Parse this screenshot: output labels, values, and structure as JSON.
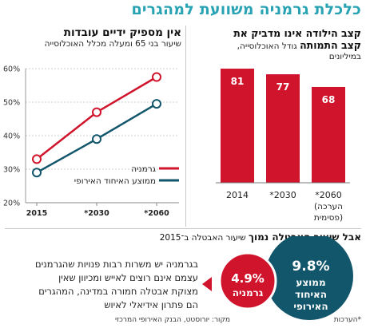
{
  "headline": "כלכלת גרמניה משוועת למהגרים",
  "bar_section": {
    "title_line1": "קצב הילודה אינו מדביק את",
    "title_line2_bold": "קצב התמותה",
    "title_line2_rest": " גודל האוכלוסייה,",
    "title_line3": "במיליונים"
  },
  "line_section": {
    "title": "אין מספיק ידיים עובדות",
    "subtitle": "שיעור בני 65 ומעלה מכלל האוכלוסייה"
  },
  "chart_data": [
    {
      "type": "bar",
      "categories": [
        "2014",
        "*2030",
        "*2060"
      ],
      "category_notes": [
        "",
        "",
        "(הערכה פסימית)"
      ],
      "values": [
        81,
        77,
        68
      ],
      "data_labels": [
        "81",
        "77",
        "68"
      ],
      "color": "#d0142c",
      "ylim": [
        0,
        81
      ]
    },
    {
      "type": "line",
      "x": [
        "2015",
        "*2030",
        "*2060"
      ],
      "y_tick_labels": [
        "20%",
        "30%",
        "40%",
        "50%",
        "60%"
      ],
      "ylim": [
        20,
        60
      ],
      "grid": true,
      "legend_position": "bottom-right",
      "series": [
        {
          "name": "גרמניה",
          "values": [
            33,
            47,
            57.5
          ],
          "color": "#d0142c"
        },
        {
          "name": "ממוצע האיחוד האירופי",
          "values": [
            29,
            39,
            49.5
          ],
          "color": "#12566b"
        }
      ]
    }
  ],
  "bottom": {
    "title_bold": "אבל שיעור האבטלה נמוך",
    "title_rest": " שיעור האבטלה ב־2015",
    "paragraph_lines": [
      "בגרמניה יש משרות רבות פנויות שהגרמנים",
      "עצמם אינם רוצים לאייש ומכיוון שאין",
      "מצוקת אבטלה חמורה במדינה, המהגרים",
      "הם פתרון אידיאלי לאיוש"
    ],
    "eu_bubble": {
      "value": "9.8%",
      "label_line1": "ממוצע",
      "label_line2": "האיחוד",
      "label_line3": "האירופי",
      "color": "#12566b"
    },
    "de_bubble": {
      "value": "4.9%",
      "label": "גרמניה",
      "color": "#d0142c"
    }
  },
  "footer": {
    "note": "*הערכות",
    "source": "מקור: יורוסטט, הבנק האירופי המרכזי"
  }
}
